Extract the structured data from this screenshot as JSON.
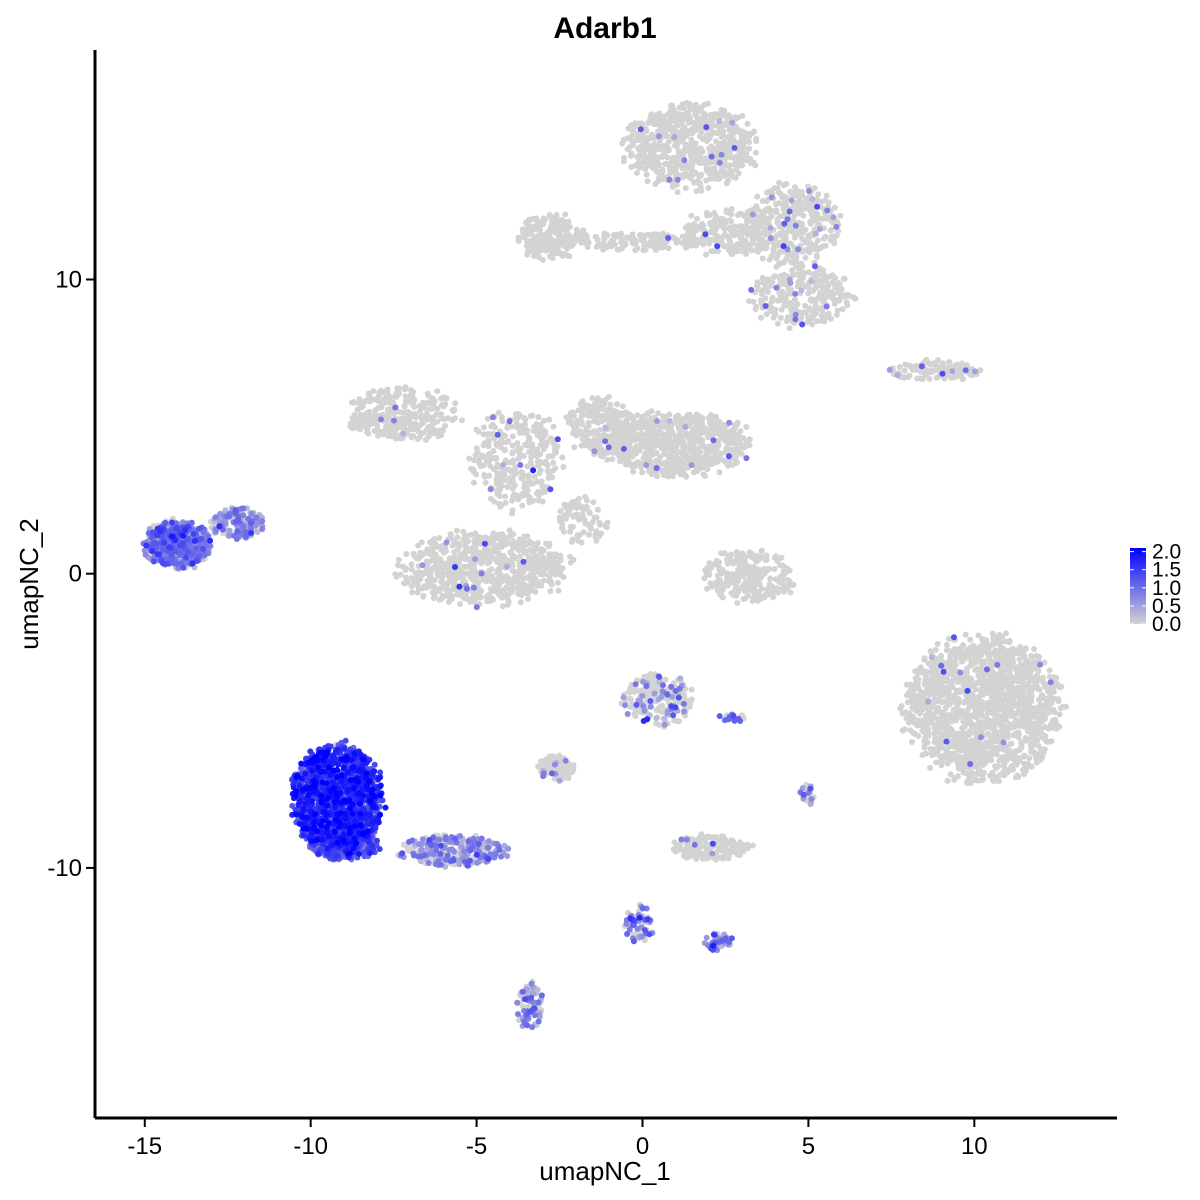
{
  "chart_data": {
    "type": "scatter",
    "title": "Adarb1",
    "xlabel": "umapNC_1",
    "ylabel": "umapNC_2",
    "xlim": [
      -16.5,
      14.3
    ],
    "ylim": [
      -18.5,
      17.8
    ],
    "x_ticks": [
      {
        "value": -15,
        "label": "-15"
      },
      {
        "value": -10,
        "label": "-10"
      },
      {
        "value": -5,
        "label": "-5"
      },
      {
        "value": 0,
        "label": "0"
      },
      {
        "value": 5,
        "label": "5"
      },
      {
        "value": 10,
        "label": "10"
      }
    ],
    "y_ticks": [
      {
        "value": 10,
        "label": "10"
      },
      {
        "value": 0,
        "label": "0"
      },
      {
        "value": -10,
        "label": "-10"
      }
    ],
    "grid": false,
    "color_scale": {
      "low_color": "#d3d3d3",
      "high_color": "#0000ff",
      "min": 0,
      "max": 2.1,
      "legend_position": "right",
      "legend_ticks": [
        {
          "value": 2.0,
          "label": "2.0"
        },
        {
          "value": 1.5,
          "label": "1.5"
        },
        {
          "value": 1.0,
          "label": "1.0"
        },
        {
          "value": 0.5,
          "label": "0.5"
        },
        {
          "value": 0.0,
          "label": "0.0"
        }
      ]
    },
    "clusters": [
      {
        "cx": 1.5,
        "cy": 14.5,
        "rx": 2.2,
        "ry": 1.6,
        "n": 650,
        "expr_frac": 0.02,
        "expr_mean": 0.8
      },
      {
        "cx": 4.5,
        "cy": 11.8,
        "rx": 1.6,
        "ry": 1.6,
        "n": 350,
        "expr_frac": 0.05,
        "expr_mean": 0.8
      },
      {
        "cx": 4.8,
        "cy": 9.4,
        "rx": 1.7,
        "ry": 1.1,
        "n": 260,
        "expr_frac": 0.05,
        "expr_mean": 0.8
      },
      {
        "cx": -2.8,
        "cy": 11.5,
        "rx": 1.1,
        "ry": 0.9,
        "n": 200,
        "expr_frac": 0.0,
        "expr_mean": 0.5
      },
      {
        "cx": -0.2,
        "cy": 11.3,
        "rx": 2.4,
        "ry": 0.35,
        "n": 140,
        "expr_frac": 0.02,
        "expr_mean": 0.8
      },
      {
        "cx": 2.5,
        "cy": 11.6,
        "rx": 1.4,
        "ry": 0.9,
        "n": 180,
        "expr_frac": 0.03,
        "expr_mean": 0.8
      },
      {
        "cx": -7.2,
        "cy": 5.4,
        "rx": 1.9,
        "ry": 1.0,
        "n": 300,
        "expr_frac": 0.01,
        "expr_mean": 0.8
      },
      {
        "cx": -3.8,
        "cy": 3.9,
        "rx": 1.5,
        "ry": 1.9,
        "n": 300,
        "expr_frac": 0.02,
        "expr_mean": 0.8
      },
      {
        "cx": 1.0,
        "cy": 4.4,
        "rx": 2.5,
        "ry": 1.2,
        "n": 700,
        "expr_frac": 0.01,
        "expr_mean": 0.8
      },
      {
        "cx": -1.3,
        "cy": 5.0,
        "rx": 1.1,
        "ry": 1.1,
        "n": 200,
        "expr_frac": 0.01,
        "expr_mean": 0.8
      },
      {
        "cx": -4.8,
        "cy": 0.2,
        "rx": 2.8,
        "ry": 1.4,
        "n": 700,
        "expr_frac": 0.02,
        "expr_mean": 0.8
      },
      {
        "cx": -1.8,
        "cy": 1.8,
        "rx": 0.9,
        "ry": 0.9,
        "n": 80,
        "expr_frac": 0.0,
        "expr_mean": 0.5
      },
      {
        "cx": 3.2,
        "cy": -0.1,
        "rx": 1.6,
        "ry": 1.0,
        "n": 240,
        "expr_frac": 0.01,
        "expr_mean": 0.8
      },
      {
        "cx": 8.8,
        "cy": 6.9,
        "rx": 1.6,
        "ry": 0.4,
        "n": 110,
        "expr_frac": 0.05,
        "expr_mean": 0.8
      },
      {
        "cx": 10.3,
        "cy": -4.6,
        "rx": 2.6,
        "ry": 2.7,
        "n": 1500,
        "expr_frac": 0.01,
        "expr_mean": 0.8
      },
      {
        "cx": -14.0,
        "cy": 1.0,
        "rx": 1.1,
        "ry": 0.9,
        "n": 550,
        "expr_frac": 0.9,
        "expr_mean": 0.8
      },
      {
        "cx": -12.2,
        "cy": 1.7,
        "rx": 0.9,
        "ry": 0.6,
        "n": 150,
        "expr_frac": 0.7,
        "expr_mean": 0.6
      },
      {
        "cx": -9.2,
        "cy": -7.6,
        "rx": 1.5,
        "ry": 2.0,
        "n": 1300,
        "expr_frac": 0.97,
        "expr_mean": 1.5
      },
      {
        "cx": -9.0,
        "cy": -9.2,
        "rx": 1.2,
        "ry": 0.6,
        "n": 300,
        "expr_frac": 0.9,
        "expr_mean": 1.2
      },
      {
        "cx": -5.7,
        "cy": -9.4,
        "rx": 1.8,
        "ry": 0.6,
        "n": 250,
        "expr_frac": 0.65,
        "expr_mean": 0.6
      },
      {
        "cx": -3.4,
        "cy": -14.7,
        "rx": 0.45,
        "ry": 0.9,
        "n": 90,
        "expr_frac": 0.7,
        "expr_mean": 0.6
      },
      {
        "cx": 0.5,
        "cy": -4.3,
        "rx": 1.2,
        "ry": 1.0,
        "n": 220,
        "expr_frac": 0.2,
        "expr_mean": 0.7
      },
      {
        "cx": -2.6,
        "cy": -6.6,
        "rx": 0.6,
        "ry": 0.5,
        "n": 90,
        "expr_frac": 0.2,
        "expr_mean": 0.6
      },
      {
        "cx": 2.1,
        "cy": -9.3,
        "rx": 1.3,
        "ry": 0.5,
        "n": 160,
        "expr_frac": 0.05,
        "expr_mean": 0.8
      },
      {
        "cx": -0.1,
        "cy": -11.9,
        "rx": 0.5,
        "ry": 0.7,
        "n": 60,
        "expr_frac": 0.6,
        "expr_mean": 0.8
      },
      {
        "cx": 2.3,
        "cy": -12.5,
        "rx": 0.5,
        "ry": 0.35,
        "n": 45,
        "expr_frac": 0.7,
        "expr_mean": 0.8
      },
      {
        "cx": 5.0,
        "cy": -7.5,
        "rx": 0.25,
        "ry": 0.4,
        "n": 25,
        "expr_frac": 0.4,
        "expr_mean": 0.7
      },
      {
        "cx": 2.7,
        "cy": -4.9,
        "rx": 0.45,
        "ry": 0.15,
        "n": 18,
        "expr_frac": 0.6,
        "expr_mean": 0.9
      }
    ]
  }
}
